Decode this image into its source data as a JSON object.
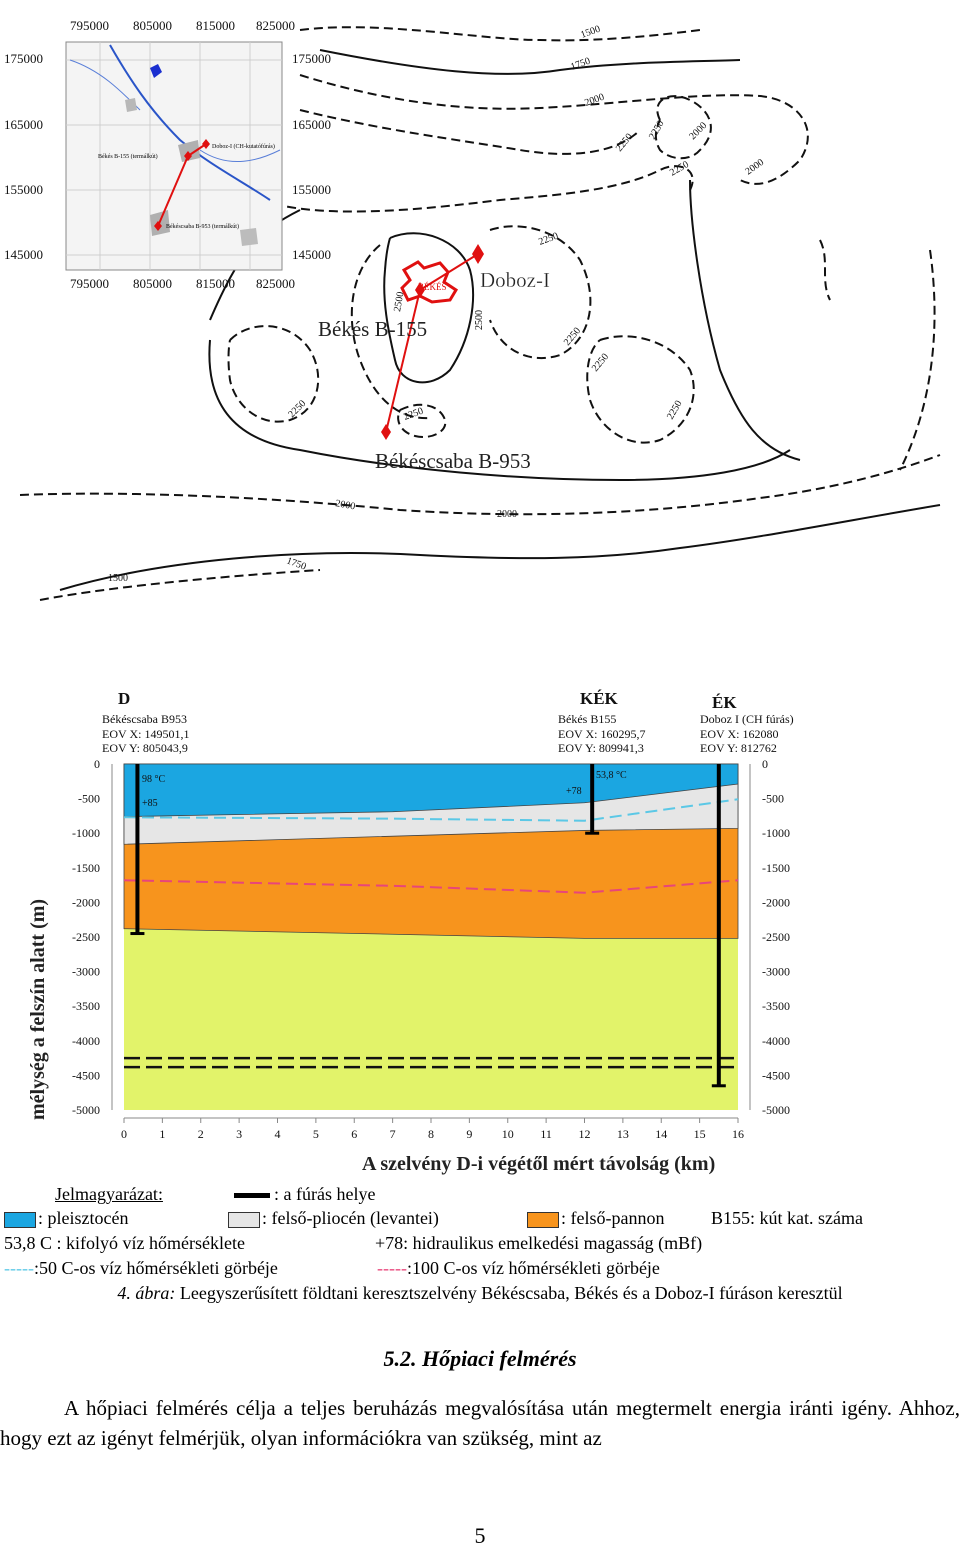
{
  "map": {
    "inset_x_ticks": [
      "795000",
      "805000",
      "815000",
      "825000"
    ],
    "inset_y_ticks": [
      "175000",
      "165000",
      "155000",
      "145000"
    ],
    "inset_wells": [
      "Békés B-155 (termálkút)",
      "Doboz-I (CH-kutatófúrás)",
      "Békéscsaba B-953 (termálkút)"
    ],
    "contour_labels": [
      "1500",
      "1750",
      "2000",
      "2250",
      "2250",
      "2000",
      "2000",
      "2250",
      "2500",
      "2500",
      "2250",
      "2250",
      "2250",
      "2250",
      "2250",
      "2250",
      "2000",
      "2000",
      "1750",
      "1500"
    ],
    "well_labels": {
      "doboz": "Doboz-I",
      "bekes": "Békés B-155",
      "csaba": "Békéscsaba B-953"
    },
    "town_label": "BÉKÉS"
  },
  "section": {
    "wells": [
      {
        "code": "D",
        "name": "Békéscsaba B953",
        "eov_x": "EOV X: 149501,1",
        "eov_y": "EOV Y: 805043,9"
      },
      {
        "code": "KÉK",
        "name": "Békés B155",
        "eov_x": "EOV X: 160295,7",
        "eov_y": "EOV Y: 809941,3"
      },
      {
        "code": "ÉK",
        "name": "Doboz I (CH fúrás)",
        "eov_x": "EOV X: 162080",
        "eov_y": "EOV Y: 812762"
      }
    ],
    "annotations": {
      "temp_d": "98 °C",
      "head_d": "+85",
      "temp_kek": "53,8 °C",
      "head_kek": "+78"
    },
    "colors": {
      "pleisztocen": "#1ba6e1",
      "pliocen": "#e6e6e6",
      "pannon": "#f7941d",
      "lower": "#e2f36a",
      "curve50": "#5bc8e6",
      "curve100": "#e8457a"
    }
  },
  "chart_data": {
    "type": "table",
    "title": "",
    "xlabel": "A szelvény D-i végétől mért távolság (km)",
    "ylabel": "mélység a felszín alatt (m)",
    "x_ticks": [
      "0",
      "1",
      "2",
      "3",
      "4",
      "5",
      "6",
      "7",
      "8",
      "9",
      "10",
      "11",
      "12",
      "13",
      "14",
      "15",
      "16"
    ],
    "y_ticks": [
      "0",
      "-500",
      "-1000",
      "-1500",
      "-2000",
      "-2500",
      "-3000",
      "-3500",
      "-4000",
      "-4500",
      "-5000"
    ],
    "xlim": [
      0,
      16
    ],
    "ylim": [
      -5000,
      0
    ],
    "wells": [
      {
        "name": "Békéscsaba B953",
        "x_km": 0.35,
        "bottom_m": -2450
      },
      {
        "name": "Békés B155",
        "x_km": 12.2,
        "bottom_m": -1000
      },
      {
        "name": "Doboz I",
        "x_km": 15.5,
        "bottom_m": -4650
      }
    ],
    "layers": [
      {
        "name": "pleisztocén",
        "top": [
          [
            0,
            0
          ],
          [
            16,
            0
          ]
        ],
        "bottom": [
          [
            0,
            -760
          ],
          [
            7,
            -690
          ],
          [
            12,
            -560
          ],
          [
            16,
            -290
          ]
        ]
      },
      {
        "name": "felső-pliocén (levantei)",
        "bottom": [
          [
            0,
            -1160
          ],
          [
            12,
            -960
          ],
          [
            16,
            -930
          ]
        ]
      },
      {
        "name": "felső-pannon",
        "bottom": [
          [
            0,
            -2380
          ],
          [
            7,
            -2460
          ],
          [
            12,
            -2520
          ],
          [
            16,
            -2520
          ]
        ]
      }
    ],
    "curve_50C": [
      [
        0,
        -770
      ],
      [
        7,
        -790
      ],
      [
        12,
        -820
      ],
      [
        16,
        -510
      ]
    ],
    "curve_100C": [
      [
        0,
        -1680
      ],
      [
        7,
        -1760
      ],
      [
        12,
        -1860
      ],
      [
        16,
        -1680
      ]
    ],
    "dashed_lines_m": [
      -4250,
      -4380
    ]
  },
  "legend": {
    "title": "Jelmagyarázat:",
    "borehole": ": a fúrás helye",
    "pleisztocen": ": pleisztocén",
    "pliocen": ": felső-pliocén (levantei)",
    "pannon": ": felső-pannon",
    "well_no": "B155: kút kat. száma",
    "temp": "53,8   C : kifolyó víz hőmérséklete",
    "head": "+78: hidraulikus emelkedési magasság (mBf)",
    "c50_dash": "-----",
    "c50": ":50   C-os víz hőmérsékleti görbéje",
    "c100_dash": "-----",
    "c100": ":100   C-os víz hőmérsékleti görbéje"
  },
  "caption": {
    "label": "4. ábra:",
    "text": " Leegyszerűsített földtani keresztszelvény Békéscsaba, Békés és a Doboz-I fúráson keresztül"
  },
  "section_heading": "5.2. Hőpiaci felmérés",
  "paragraph": "A hőpiaci felmérés célja a teljes beruházás megvalósítása után megtermelt energia iránti igény. Ahhoz, hogy ezt az igényt felmérjük, olyan információkra van szükség, mint az",
  "page_number": "5"
}
